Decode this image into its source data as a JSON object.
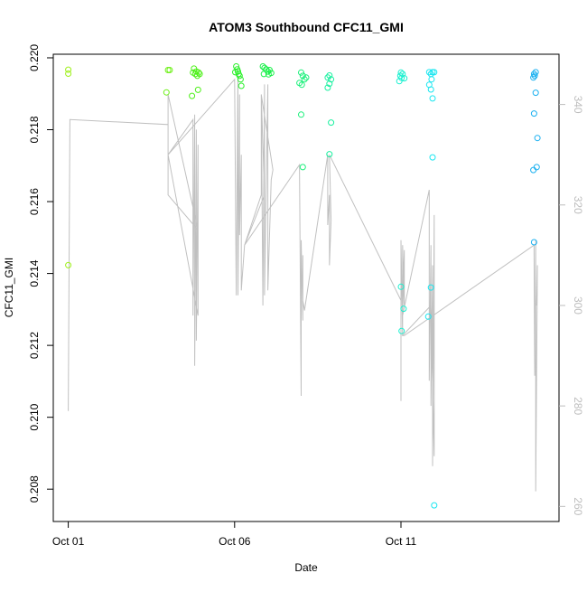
{
  "chart_data": {
    "type": "scatter",
    "title": "ATOM3 Southbound CFC11_GMI",
    "xlabel": "Date",
    "ylabel": "CFC11_GMI",
    "x_ticks": [
      {
        "day": 1,
        "label": "Oct 01"
      },
      {
        "day": 6,
        "label": "Oct 06"
      },
      {
        "day": 11,
        "label": "Oct 11"
      }
    ],
    "y_ticks": [
      "0.208",
      "0.210",
      "0.212",
      "0.214",
      "0.216",
      "0.218",
      "0.220"
    ],
    "y2_ticks": [
      "260",
      "280",
      "300",
      "320",
      "340"
    ],
    "xlim": [
      0.55,
      15.75
    ],
    "ylim": [
      0.2071,
      0.2201
    ],
    "y2lim": [
      257,
      350
    ],
    "grid": false,
    "legend": "none",
    "series": [
      {
        "kind": "points",
        "note_x": "days of October",
        "points": [
          [
            1.0,
            0.21967,
            "#9ef01a"
          ],
          [
            1.0,
            0.21956,
            "#9ef01a"
          ],
          [
            1.0,
            0.21423,
            "#9ef01a"
          ],
          [
            4.0,
            0.21966,
            "#6ff01a"
          ],
          [
            4.05,
            0.21966,
            "#6ff01a"
          ],
          [
            3.95,
            0.21904,
            "#6ff01a"
          ],
          [
            4.78,
            0.2197,
            "#4ff01a"
          ],
          [
            4.75,
            0.21959,
            "#4ff01a"
          ],
          [
            4.82,
            0.21955,
            "#4ff01a"
          ],
          [
            4.85,
            0.21962,
            "#4ff01a"
          ],
          [
            4.88,
            0.2195,
            "#4ff01a"
          ],
          [
            4.92,
            0.21959,
            "#4ff01a"
          ],
          [
            4.95,
            0.21955,
            "#4ff01a"
          ],
          [
            4.72,
            0.21894,
            "#4ff01a"
          ],
          [
            4.9,
            0.21911,
            "#4ff01a"
          ],
          [
            6.05,
            0.21976,
            "#2af02a"
          ],
          [
            6.08,
            0.21968,
            "#2af02a"
          ],
          [
            6.1,
            0.21962,
            "#2af02a"
          ],
          [
            6.12,
            0.21955,
            "#2af02a"
          ],
          [
            6.15,
            0.2195,
            "#2af02a"
          ],
          [
            6.18,
            0.2194,
            "#2af02a"
          ],
          [
            6.2,
            0.21922,
            "#2af02a"
          ],
          [
            6.02,
            0.2196,
            "#2af02a"
          ],
          [
            6.85,
            0.21976,
            "#1af04a"
          ],
          [
            6.9,
            0.21972,
            "#1af04a"
          ],
          [
            6.95,
            0.21968,
            "#1af04a"
          ],
          [
            7.0,
            0.21962,
            "#1af04a"
          ],
          [
            7.05,
            0.21966,
            "#1af04a"
          ],
          [
            7.1,
            0.21958,
            "#1af04a"
          ],
          [
            6.88,
            0.21955,
            "#1af04a"
          ],
          [
            7.02,
            0.21954,
            "#1af04a"
          ],
          [
            8.0,
            0.21959,
            "#1af07a"
          ],
          [
            8.05,
            0.2195,
            "#1af07a"
          ],
          [
            8.1,
            0.2194,
            "#1af07a"
          ],
          [
            7.95,
            0.2193,
            "#1af07a"
          ],
          [
            8.15,
            0.21945,
            "#1af07a"
          ],
          [
            8.02,
            0.21925,
            "#1af07a"
          ],
          [
            8.0,
            0.21842,
            "#1af07a"
          ],
          [
            8.05,
            0.21696,
            "#1af07a"
          ],
          [
            8.85,
            0.21951,
            "#1af0a0"
          ],
          [
            8.9,
            0.2194,
            "#1af0a0"
          ],
          [
            8.8,
            0.21945,
            "#1af0a0"
          ],
          [
            8.85,
            0.21928,
            "#1af0a0"
          ],
          [
            8.8,
            0.21917,
            "#1af0a0"
          ],
          [
            8.9,
            0.2182,
            "#1af0a0"
          ],
          [
            8.85,
            0.21732,
            "#1af0a0"
          ],
          [
            11.0,
            0.21959,
            "#1af0d0"
          ],
          [
            11.05,
            0.21955,
            "#1af0d0"
          ],
          [
            10.98,
            0.2195,
            "#1af0d0"
          ],
          [
            11.02,
            0.21944,
            "#1af0d0"
          ],
          [
            11.1,
            0.21943,
            "#1af0d0"
          ],
          [
            10.95,
            0.21935,
            "#1af0d0"
          ],
          [
            11.0,
            0.21363,
            "#1af0d0"
          ],
          [
            11.08,
            0.21302,
            "#1af0d0"
          ],
          [
            11.02,
            0.2124,
            "#1af0d0"
          ],
          [
            11.85,
            0.2196,
            "#1ae6f0"
          ],
          [
            11.9,
            0.21955,
            "#1ae6f0"
          ],
          [
            11.95,
            0.2196,
            "#1ae6f0"
          ],
          [
            12.0,
            0.2196,
            "#1ae6f0"
          ],
          [
            11.92,
            0.2194,
            "#1ae6f0"
          ],
          [
            11.85,
            0.21925,
            "#1ae6f0"
          ],
          [
            11.9,
            0.21912,
            "#1ae6f0"
          ],
          [
            11.95,
            0.21887,
            "#1ae6f0"
          ],
          [
            11.95,
            0.21723,
            "#1ae6f0"
          ],
          [
            11.9,
            0.21361,
            "#1ae6f0"
          ],
          [
            11.82,
            0.2128,
            "#1ae6f0"
          ],
          [
            12.0,
            0.20755,
            "#1ae6f0"
          ],
          [
            15.0,
            0.21955,
            "#1ab0f0"
          ],
          [
            15.05,
            0.2196,
            "#1ab0f0"
          ],
          [
            14.98,
            0.21945,
            "#1ab0f0"
          ],
          [
            15.02,
            0.2195,
            "#1ab0f0"
          ],
          [
            15.05,
            0.21903,
            "#1ab0f0"
          ],
          [
            15.0,
            0.21845,
            "#1ab0f0"
          ],
          [
            15.1,
            0.21777,
            "#1ab0f0"
          ],
          [
            15.08,
            0.21696,
            "#1ab0f0"
          ],
          [
            14.98,
            0.21688,
            "#1ab0f0"
          ],
          [
            15.0,
            0.21487,
            "#1ab0f0"
          ]
        ]
      },
      {
        "kind": "line",
        "axis": "right",
        "color": "#c0c0c0",
        "points": [
          [
            1.0,
            279
          ],
          [
            1.05,
            337
          ],
          [
            4.0,
            336
          ],
          [
            4.0,
            342
          ],
          [
            4.0,
            330
          ],
          [
            4.75,
            337
          ],
          [
            4.75,
            298
          ],
          [
            4.8,
            338
          ],
          [
            4.8,
            288
          ],
          [
            4.85,
            335
          ],
          [
            4.85,
            293
          ],
          [
            4.9,
            332
          ],
          [
            4.9,
            315
          ],
          [
            4.0,
            322
          ],
          [
            4.0,
            342
          ],
          [
            4.9,
            315
          ],
          [
            4.9,
            298
          ],
          [
            4.0,
            330
          ],
          [
            6.0,
            345
          ],
          [
            6.05,
            302
          ],
          [
            6.1,
            347
          ],
          [
            6.1,
            302
          ],
          [
            6.15,
            342
          ],
          [
            6.15,
            314
          ],
          [
            6.2,
            330
          ],
          [
            6.2,
            303
          ],
          [
            6.3,
            312
          ],
          [
            6.8,
            322
          ],
          [
            6.8,
            342
          ],
          [
            6.85,
            300
          ],
          [
            6.9,
            344
          ],
          [
            6.9,
            302
          ],
          [
            7.0,
            344
          ],
          [
            7.0,
            303
          ],
          [
            7.1,
            325
          ],
          [
            7.15,
            327
          ],
          [
            6.8,
            342
          ],
          [
            6.9,
            322
          ],
          [
            6.3,
            312
          ],
          [
            7.95,
            328
          ],
          [
            8.0,
            282
          ],
          [
            8.0,
            313
          ],
          [
            8.05,
            297
          ],
          [
            8.05,
            310
          ],
          [
            8.05,
            301
          ],
          [
            8.1,
            299
          ],
          [
            8.8,
            330
          ],
          [
            8.8,
            316
          ],
          [
            8.85,
            322
          ],
          [
            8.85,
            308
          ],
          [
            8.9,
            317
          ],
          [
            8.85,
            330
          ],
          [
            11.0,
            301
          ],
          [
            11.0,
            281
          ],
          [
            11.0,
            313
          ],
          [
            11.05,
            294
          ],
          [
            11.05,
            312
          ],
          [
            11.1,
            300
          ],
          [
            11.1,
            311
          ],
          [
            11.05,
            298
          ],
          [
            11.85,
            323
          ],
          [
            11.85,
            285
          ],
          [
            11.9,
            312
          ],
          [
            11.9,
            280
          ],
          [
            11.95,
            308
          ],
          [
            11.95,
            268
          ],
          [
            12.0,
            318
          ],
          [
            12.0,
            270
          ],
          [
            11.9,
            300
          ],
          [
            11.05,
            294
          ],
          [
            11.1,
            294
          ],
          [
            15.0,
            312
          ],
          [
            15.0,
            310
          ],
          [
            15.02,
            286
          ],
          [
            15.05,
            313
          ],
          [
            15.05,
            263
          ],
          [
            15.1,
            308
          ],
          [
            15.08,
            300
          ]
        ]
      }
    ]
  }
}
